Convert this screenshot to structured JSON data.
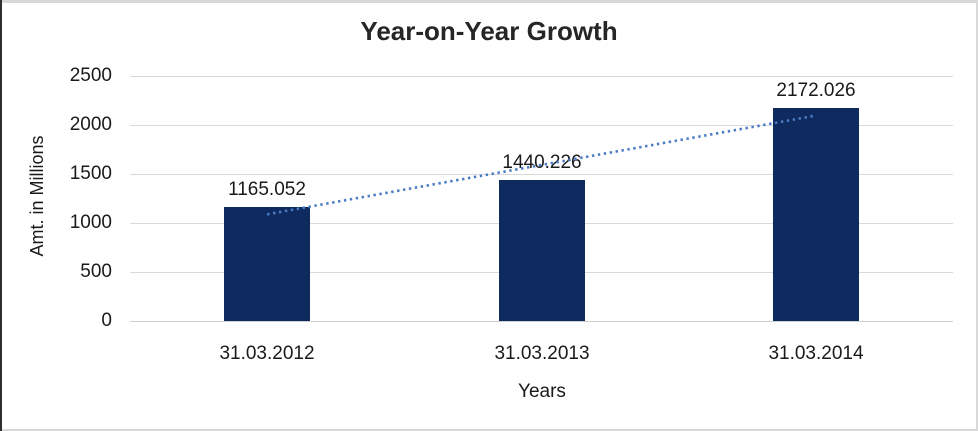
{
  "colors": {
    "bar": "#0F2A5E",
    "trendline": "#4A7BC4",
    "gridline": "#D9D9D9",
    "axis_line": "#CFCFCF",
    "border_light": "#D8D8D8",
    "border_dark": "#2F2F2F",
    "title_text": "#262626",
    "label_text": "#1A1A1A"
  },
  "chart_data": {
    "type": "bar",
    "title": "Year-on-Year Growth",
    "xlabel": "Years",
    "ylabel": "Amt. in Millions",
    "categories": [
      "31.03.2012",
      "31.03.2013",
      "31.03.2014"
    ],
    "values": [
      1165.052,
      1440.226,
      2172.026
    ],
    "data_labels": [
      "1165.052",
      "1440.226",
      "2172.026"
    ],
    "ylim": [
      0,
      2500
    ],
    "yticks": [
      0,
      500,
      1000,
      1500,
      2000,
      2500
    ],
    "grid": true,
    "legend": "none",
    "trendline": {
      "type": "linear",
      "style": "dotted"
    }
  }
}
